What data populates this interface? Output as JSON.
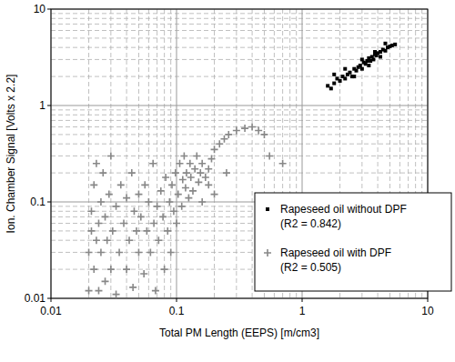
{
  "chart_data": {
    "type": "scatter",
    "x_label": "Total PM Length (EEPS) [m/cm3]",
    "y_label": "Ion. Chamber Signal [Volts x 2.2]",
    "log": true,
    "grid": true,
    "legend": "lower right",
    "xlim": [
      0.01,
      10
    ],
    "ylim": [
      0.01,
      10
    ],
    "xticks": [
      0.01,
      0.1,
      1,
      10
    ],
    "yticks": [
      0.01,
      0.1,
      1,
      10
    ],
    "series": [
      {
        "name": "Rapeseed oil without DPF (R2 = 0.842)",
        "color": "#000000",
        "marker": "square",
        "x": [
          1.6,
          1.7,
          1.8,
          1.9,
          2.0,
          2.1,
          2.2,
          2.3,
          2.4,
          2.5,
          2.6,
          2.7,
          2.8,
          2.9,
          3.0,
          3.1,
          3.2,
          3.3,
          3.4,
          3.5,
          3.6,
          3.7,
          3.8,
          3.9,
          4.0,
          4.2,
          4.4,
          4.6,
          4.8,
          5.0,
          5.2,
          5.5,
          1.8,
          2.2,
          2.6,
          3.0,
          3.4,
          3.8,
          4.2,
          4.6
        ],
        "values": [
          1.6,
          1.5,
          1.7,
          1.9,
          1.8,
          2.0,
          1.9,
          2.1,
          2.2,
          2.0,
          2.4,
          2.3,
          2.5,
          2.6,
          2.4,
          2.8,
          2.7,
          2.9,
          3.1,
          2.9,
          3.2,
          3.0,
          3.4,
          3.3,
          3.5,
          3.6,
          3.8,
          3.7,
          4.0,
          4.1,
          4.2,
          4.3,
          2.1,
          2.4,
          2.0,
          3.0,
          2.6,
          3.6,
          3.2,
          4.4
        ]
      },
      {
        "name": "Rapeseed oil with DPF (R2 = 0.505)",
        "color": "#888888",
        "marker": "plus",
        "x": [
          0.02,
          0.02,
          0.021,
          0.021,
          0.022,
          0.022,
          0.023,
          0.023,
          0.024,
          0.024,
          0.025,
          0.025,
          0.026,
          0.027,
          0.027,
          0.028,
          0.029,
          0.03,
          0.03,
          0.031,
          0.033,
          0.033,
          0.035,
          0.036,
          0.038,
          0.04,
          0.04,
          0.042,
          0.044,
          0.045,
          0.046,
          0.048,
          0.05,
          0.05,
          0.052,
          0.055,
          0.056,
          0.058,
          0.06,
          0.062,
          0.065,
          0.066,
          0.068,
          0.07,
          0.072,
          0.075,
          0.078,
          0.08,
          0.082,
          0.085,
          0.088,
          0.09,
          0.092,
          0.095,
          0.098,
          0.1,
          0.103,
          0.106,
          0.11,
          0.112,
          0.115,
          0.118,
          0.12,
          0.125,
          0.128,
          0.13,
          0.135,
          0.14,
          0.145,
          0.15,
          0.155,
          0.16,
          0.17,
          0.18,
          0.19,
          0.2,
          0.22,
          0.24,
          0.26,
          0.3,
          0.35,
          0.4,
          0.45,
          0.5,
          0.55,
          0.7,
          0.18,
          0.2,
          0.16,
          0.25
        ],
        "values": [
          0.012,
          0.03,
          0.05,
          0.08,
          0.02,
          0.15,
          0.04,
          0.25,
          0.012,
          0.06,
          0.1,
          0.03,
          0.2,
          0.015,
          0.07,
          0.04,
          0.12,
          0.02,
          0.3,
          0.05,
          0.011,
          0.09,
          0.03,
          0.15,
          0.06,
          0.02,
          0.11,
          0.04,
          0.2,
          0.013,
          0.08,
          0.05,
          0.03,
          0.12,
          0.07,
          0.018,
          0.15,
          0.05,
          0.1,
          0.03,
          0.25,
          0.06,
          0.012,
          0.09,
          0.04,
          0.13,
          0.07,
          0.02,
          0.18,
          0.05,
          0.1,
          0.03,
          0.15,
          0.08,
          0.2,
          0.06,
          0.12,
          0.25,
          0.09,
          0.17,
          0.3,
          0.14,
          0.2,
          0.11,
          0.25,
          0.18,
          0.13,
          0.22,
          0.3,
          0.16,
          0.2,
          0.25,
          0.18,
          0.22,
          0.28,
          0.35,
          0.4,
          0.45,
          0.5,
          0.55,
          0.58,
          0.6,
          0.55,
          0.5,
          0.3,
          0.25,
          0.15,
          0.12,
          0.1,
          0.2
        ]
      }
    ]
  }
}
